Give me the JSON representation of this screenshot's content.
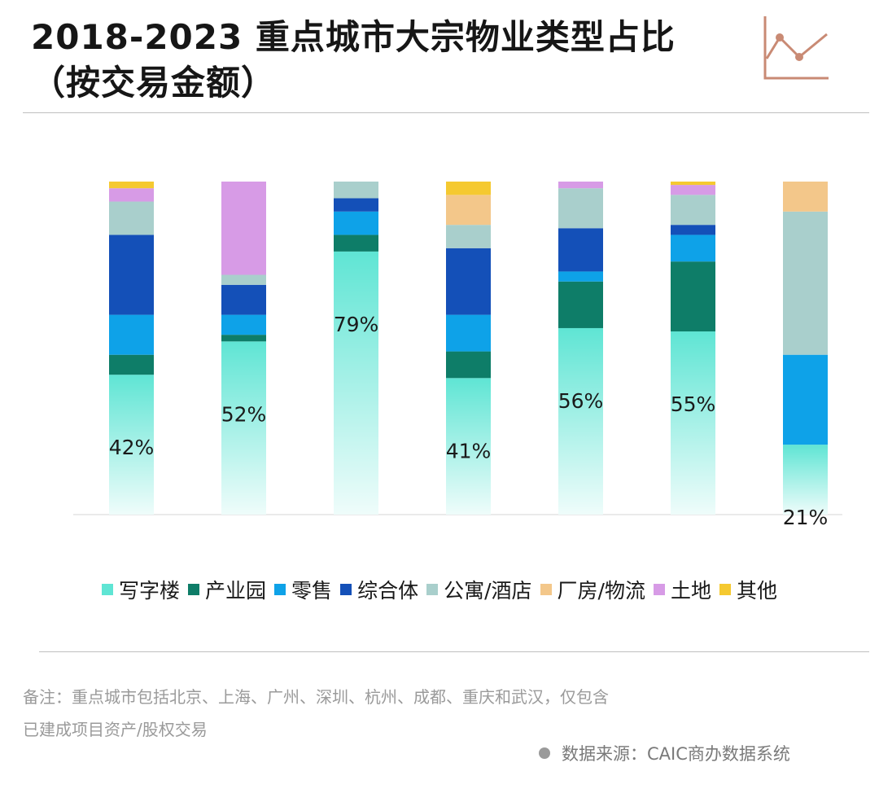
{
  "title": {
    "line1": "2018-2023 重点城市大宗物业类型占比",
    "line2": "（按交易金额）"
  },
  "logo_icon": "line-chart-icon",
  "chart_data": {
    "type": "bar",
    "stacked": true,
    "normalized": true,
    "categories": [
      "",
      "",
      "",
      "",
      "",
      "",
      ""
    ],
    "ylim": [
      0,
      100
    ],
    "grid": false,
    "legend_position": "bottom",
    "series": [
      {
        "name": "写字楼",
        "color": "#5fe5d4",
        "values": [
          42,
          52,
          79,
          41,
          56,
          55,
          21
        ]
      },
      {
        "name": "产业园",
        "color": "#0e7d68",
        "values": [
          6,
          2,
          5,
          8,
          14,
          21,
          0
        ]
      },
      {
        "name": "零售",
        "color": "#0ea2e8",
        "values": [
          12,
          6,
          7,
          11,
          3,
          8,
          27
        ]
      },
      {
        "name": "综合体",
        "color": "#1450b8",
        "values": [
          24,
          9,
          4,
          20,
          13,
          3,
          0
        ]
      },
      {
        "name": "公寓/酒店",
        "color": "#a9cfcc",
        "values": [
          10,
          3,
          5,
          7,
          12,
          9,
          43
        ]
      },
      {
        "name": "厂房/物流",
        "color": "#f3c78a",
        "values": [
          0,
          0,
          0,
          9,
          0,
          0,
          9
        ]
      },
      {
        "name": "土地",
        "color": "#d79be6",
        "values": [
          4,
          28,
          0,
          0,
          2,
          3,
          0
        ]
      },
      {
        "name": "其他",
        "color": "#f5c930",
        "values": [
          2,
          0,
          0,
          4,
          0,
          1,
          0
        ]
      }
    ],
    "data_labels": [
      "42%",
      "52%",
      "79%",
      "41%",
      "56%",
      "55%",
      "21%"
    ]
  },
  "note": {
    "line1": "备注：重点城市包括北京、上海、广州、深圳、杭州、成都、重庆和武汉，仅包含",
    "line2": "已建成项目资产/股权交易"
  },
  "source": "数据来源：CAIC商办数据系统"
}
